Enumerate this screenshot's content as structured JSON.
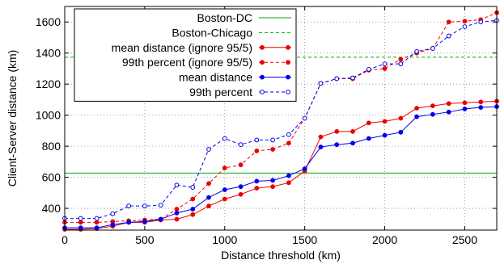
{
  "chart_data": {
    "type": "line",
    "xlabel": "Distance threshold (km)",
    "ylabel": "Client-Server distance (km)",
    "xlim": [
      0,
      2700
    ],
    "ylim": [
      260,
      1700
    ],
    "x_ticks": [
      0,
      500,
      1000,
      1500,
      2000,
      2500
    ],
    "y_ticks": [
      400,
      600,
      800,
      1000,
      1200,
      1400,
      1600
    ],
    "grid": "dotted",
    "legend_position": "top-left",
    "reference_lines": [
      {
        "name": "Boston-DC",
        "y": 627,
        "color": "#00aa00",
        "dash": "solid"
      },
      {
        "name": "Boston-Chicago",
        "y": 1373,
        "color": "#00aa00",
        "dash": "dashed"
      }
    ],
    "x": [
      0,
      100,
      200,
      300,
      400,
      500,
      600,
      700,
      800,
      900,
      1000,
      1100,
      1200,
      1300,
      1400,
      1500,
      1600,
      1700,
      1800,
      1900,
      2000,
      2100,
      2200,
      2300,
      2400,
      2500,
      2600,
      2700
    ],
    "series": [
      {
        "name": "mean distance (ignore 95/5)",
        "color": "#ee0000",
        "dash": "solid",
        "values": [
          265,
          265,
          270,
          285,
          310,
          310,
          325,
          330,
          360,
          415,
          460,
          490,
          530,
          540,
          565,
          640,
          860,
          895,
          895,
          950,
          960,
          980,
          1045,
          1060,
          1075,
          1080,
          1085,
          1090
        ]
      },
      {
        "name": "99th percent (ignore 95/5)",
        "color": "#ee0000",
        "dash": "dashed",
        "values": [
          310,
          310,
          310,
          315,
          320,
          325,
          330,
          395,
          460,
          560,
          660,
          680,
          770,
          780,
          820,
          980,
          1205,
          1235,
          1235,
          1290,
          1300,
          1360,
          1400,
          1430,
          1600,
          1605,
          1615,
          1660
        ]
      },
      {
        "name": "mean distance",
        "color": "#0000ee",
        "dash": "solid",
        "values": [
          275,
          275,
          275,
          295,
          310,
          315,
          330,
          370,
          395,
          470,
          520,
          540,
          575,
          580,
          610,
          655,
          795,
          810,
          820,
          850,
          870,
          890,
          990,
          1005,
          1020,
          1040,
          1050,
          1055
        ]
      },
      {
        "name": "99th percent",
        "color": "#0000ee",
        "dash": "dashed",
        "values": [
          335,
          335,
          335,
          365,
          415,
          415,
          420,
          550,
          535,
          780,
          850,
          810,
          840,
          840,
          875,
          980,
          1205,
          1235,
          1240,
          1295,
          1330,
          1330,
          1410,
          1430,
          1510,
          1570,
          1600,
          1610
        ]
      }
    ]
  }
}
